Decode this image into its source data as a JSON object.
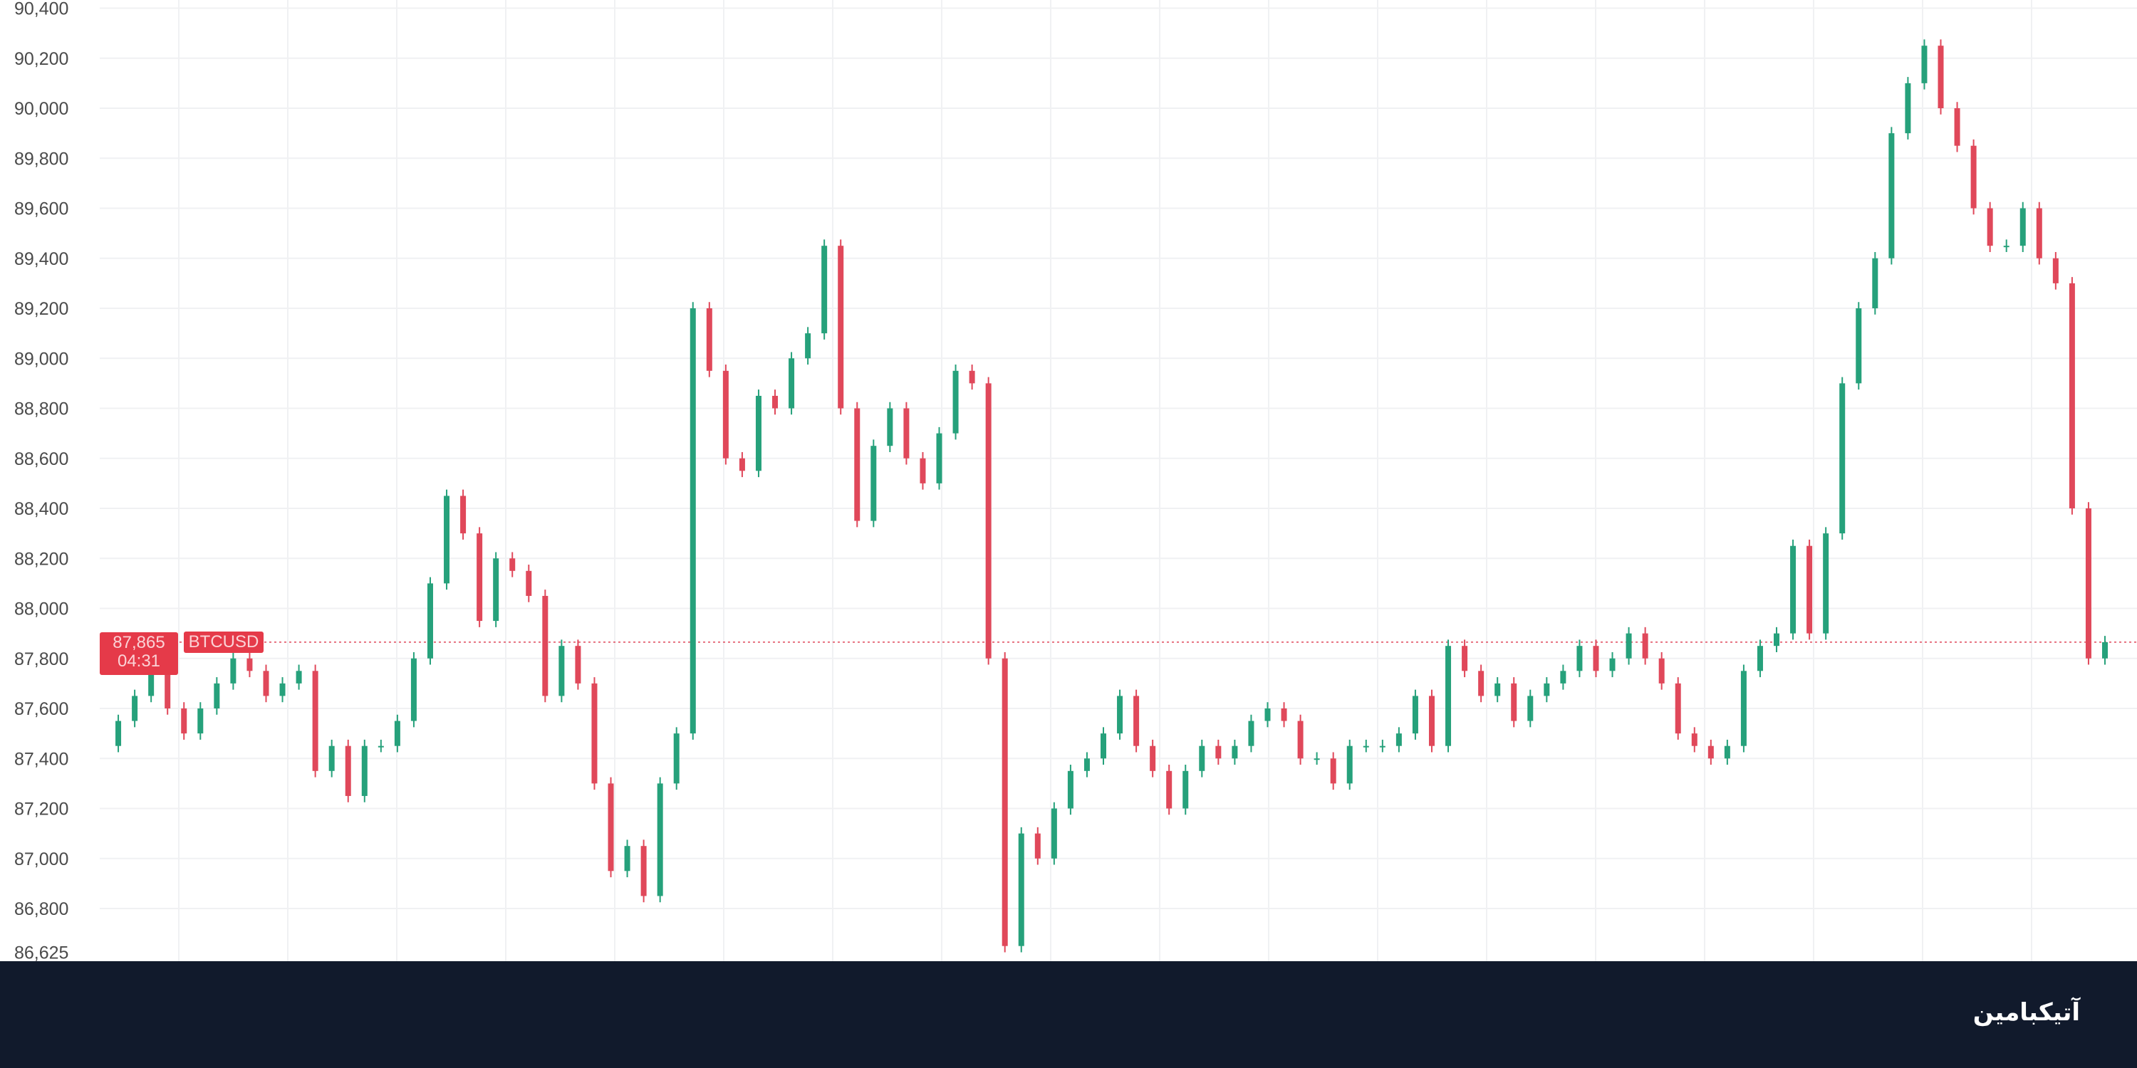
{
  "chart_data": {
    "type": "candlestick",
    "symbol": "BTCUSD",
    "ylim": [
      86625,
      90400
    ],
    "yticks": [
      86625,
      86800,
      87000,
      87200,
      87400,
      87600,
      87800,
      88000,
      88200,
      88400,
      88600,
      88800,
      89000,
      89200,
      89400,
      89600,
      89800,
      90000,
      90200,
      90400
    ],
    "ytick_labels": [
      "86,625",
      "86,800",
      "87,000",
      "87,200",
      "87,400",
      "87,600",
      "87,800",
      "88,000",
      "88,200",
      "88,400",
      "88,600",
      "88,800",
      "89,000",
      "89,200",
      "89,400",
      "89,600",
      "89,800",
      "90,000",
      "90,200",
      "90,400"
    ],
    "grid": true,
    "current_price": 87865,
    "current_price_label": "87,865",
    "countdown": "04:31",
    "up_color": "#26a17b",
    "down_color": "#e0485a",
    "closes": [
      87450,
      87550,
      87650,
      87800,
      87600,
      87500,
      87600,
      87700,
      87800,
      87750,
      87650,
      87700,
      87750,
      87350,
      87450,
      87250,
      87450,
      87450,
      87550,
      87800,
      88100,
      88450,
      88300,
      87950,
      88200,
      88150,
      88050,
      87650,
      87850,
      87700,
      87300,
      86950,
      87050,
      86850,
      87300,
      87500,
      89200,
      88950,
      88600,
      88550,
      88850,
      88800,
      89000,
      89100,
      89450,
      88800,
      88350,
      88650,
      88800,
      88600,
      88500,
      88700,
      88950,
      88900,
      87800,
      86650,
      87100,
      87000,
      87200,
      87350,
      87400,
      87500,
      87650,
      87450,
      87350,
      87200,
      87350,
      87450,
      87400,
      87450,
      87550,
      87600,
      87550,
      87400,
      87400,
      87300,
      87450,
      87450,
      87450,
      87500,
      87650,
      87450,
      87850,
      87750,
      87650,
      87700,
      87550,
      87650,
      87700,
      87750,
      87850,
      87750,
      87800,
      87900,
      87800,
      87700,
      87500,
      87450,
      87400,
      87450,
      87750,
      87850,
      87900,
      88250,
      87900,
      88300,
      88900,
      89200,
      89400,
      89900,
      90100,
      90250,
      90000,
      89850,
      89600,
      89450,
      89450,
      89600,
      89400,
      89300,
      88400,
      87800,
      87865
    ]
  },
  "footer": {
    "logo_text": "آتیکبامین"
  }
}
